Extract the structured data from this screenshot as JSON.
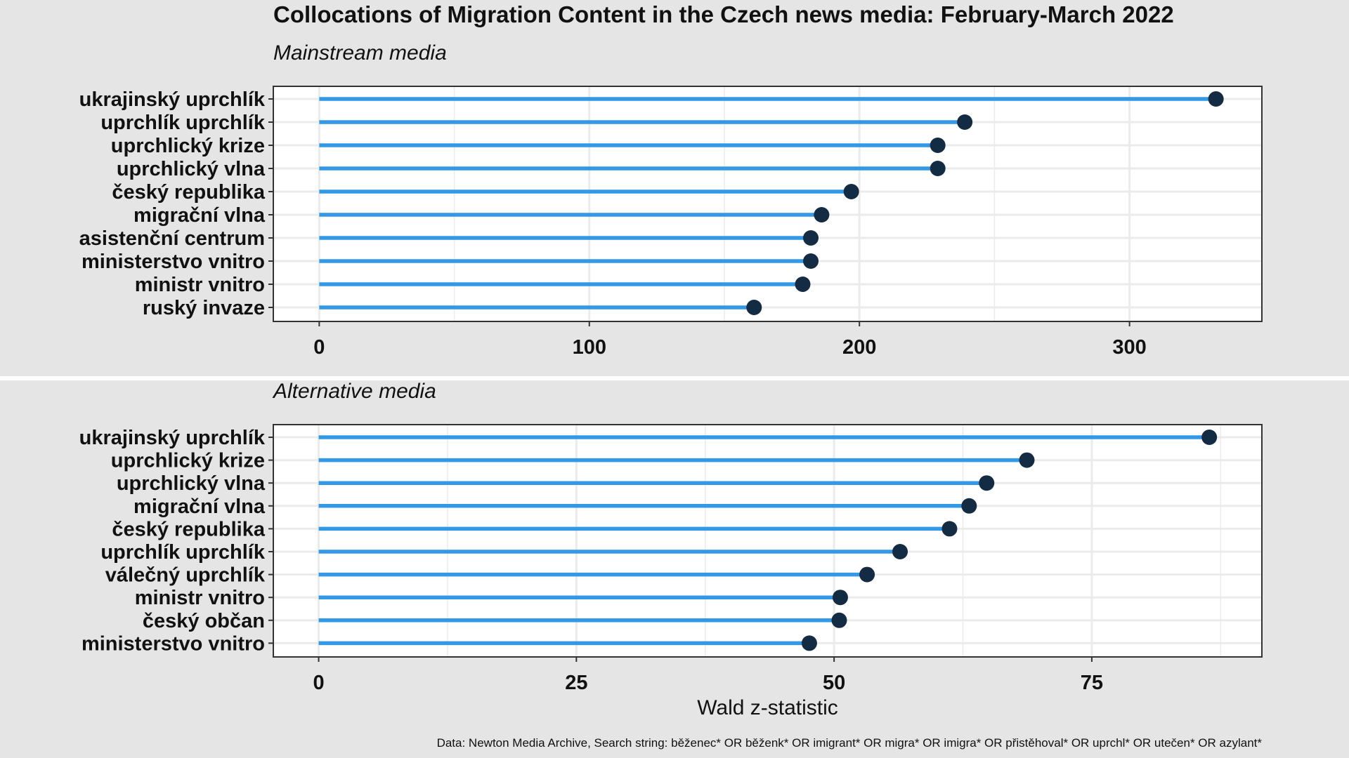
{
  "title": "Collocations of Migration Content in the Czech news media: February-March 2022",
  "xlabel": "Wald z-statistic",
  "caption": "Data: Newton Media Archive, Search string: běženec* OR běženk* OR imigrant* OR migra* OR imigra* OR přistěhoval* OR uprchl* OR utečen* OR azylant*",
  "colors": {
    "segment": "#3399e6",
    "point": "#132b43",
    "panel_bg": "#ffffff",
    "plot_bg": "#e5e5e5",
    "grid": "#ebebeb"
  },
  "chart_data": [
    {
      "type": "lollipop",
      "subtitle": "Mainstream media",
      "categories": [
        "ukrajinský uprchlík",
        "uprchlík uprchlík",
        "uprchlický krize",
        "uprchlický vlna",
        "český republika",
        "migrační vlna",
        "asistenční centrum",
        "ministerstvo vnitro",
        "ministr vnitro",
        "ruský invaze"
      ],
      "values": [
        332,
        239,
        229,
        229,
        197,
        186,
        182,
        182,
        179,
        161
      ],
      "xlim": [
        -17,
        349
      ],
      "xticks": [
        0,
        100,
        200,
        300
      ],
      "grid": true
    },
    {
      "type": "lollipop",
      "subtitle": "Alternative media",
      "categories": [
        "ukrajinský uprchlík",
        "uprchlický krize",
        "uprchlický vlna",
        "migrační vlna",
        "český republika",
        "uprchlík uprchlík",
        "válečný uprchlík",
        "ministr vnitro",
        "český občan",
        "ministerstvo vnitro"
      ],
      "values": [
        86.4,
        68.7,
        64.8,
        63.1,
        61.2,
        56.4,
        53.2,
        50.6,
        50.5,
        47.6
      ],
      "xlim": [
        -4.4,
        91.5
      ],
      "xticks": [
        0,
        25,
        50,
        75
      ],
      "grid": true
    }
  ]
}
